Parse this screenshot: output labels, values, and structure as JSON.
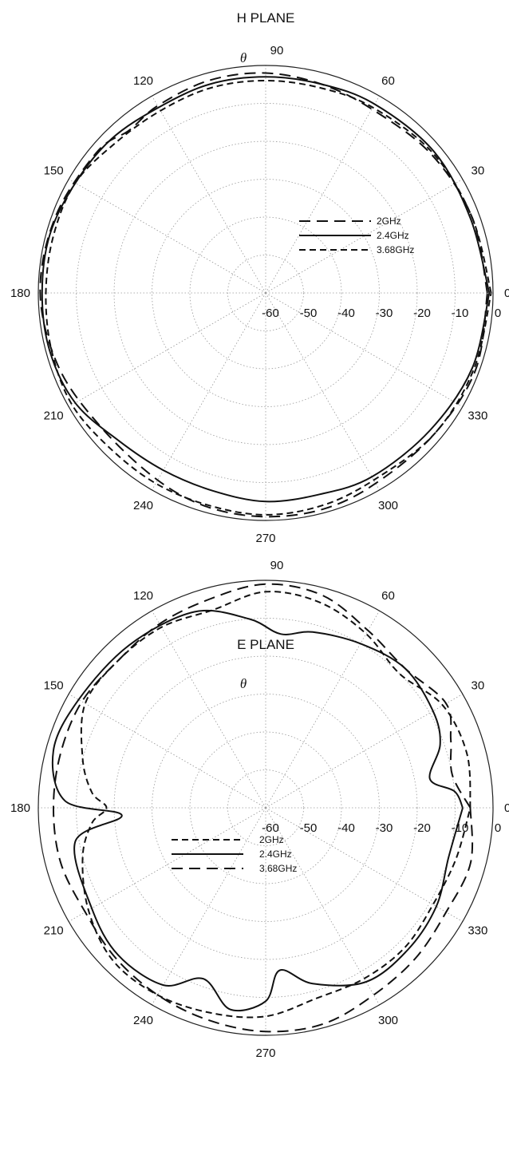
{
  "chart_data": [
    {
      "type": "polar-line",
      "title": "H PLANE",
      "theta_symbol": "θ",
      "angle_labels": [
        "0",
        "30",
        "60",
        "90",
        "120",
        "150",
        "180",
        "210",
        "240",
        "270",
        "300",
        "330"
      ],
      "radial_labels": [
        "-60",
        "-50",
        "-40",
        "-30",
        "-20",
        "-10",
        "0"
      ],
      "r_range": [
        -60,
        0
      ],
      "grid": true,
      "legend": "inside-right",
      "series": [
        {
          "name": "2GHz",
          "style": "dash-long",
          "points": [
            [
              0,
              -1.5
            ],
            [
              20,
              -2
            ],
            [
              40,
              -3
            ],
            [
              60,
              -4
            ],
            [
              75,
              -3
            ],
            [
              90,
              -2
            ],
            [
              105,
              -2
            ],
            [
              120,
              -3
            ],
            [
              130,
              -4
            ],
            [
              140,
              -2
            ],
            [
              160,
              -1
            ],
            [
              180,
              -0.5
            ],
            [
              200,
              -2
            ],
            [
              220,
              -4
            ],
            [
              240,
              -3
            ],
            [
              255,
              -1.5
            ],
            [
              270,
              -1
            ],
            [
              285,
              -1
            ],
            [
              300,
              -2
            ],
            [
              320,
              -2
            ],
            [
              340,
              -1
            ],
            [
              360,
              -1.5
            ]
          ]
        },
        {
          "name": "2.4GHz",
          "style": "solid",
          "points": [
            [
              0,
              -1
            ],
            [
              20,
              -2.5
            ],
            [
              40,
              -2
            ],
            [
              60,
              -2.5
            ],
            [
              75,
              -3
            ],
            [
              90,
              -3
            ],
            [
              105,
              -3
            ],
            [
              120,
              -3.5
            ],
            [
              135,
              -2.5
            ],
            [
              150,
              -2
            ],
            [
              165,
              -1
            ],
            [
              180,
              -1
            ],
            [
              195,
              -1
            ],
            [
              210,
              -2
            ],
            [
              225,
              -5
            ],
            [
              240,
              -6
            ],
            [
              255,
              -6
            ],
            [
              270,
              -5
            ],
            [
              285,
              -5
            ],
            [
              300,
              -4
            ],
            [
              320,
              -3.5
            ],
            [
              340,
              -2
            ],
            [
              360,
              -1
            ]
          ]
        },
        {
          "name": "3.68GHz",
          "style": "dash-short",
          "points": [
            [
              0,
              -0.5
            ],
            [
              20,
              -2
            ],
            [
              40,
              -2.5
            ],
            [
              60,
              -3.5
            ],
            [
              75,
              -4
            ],
            [
              90,
              -4
            ],
            [
              105,
              -4
            ],
            [
              120,
              -4.5
            ],
            [
              135,
              -4
            ],
            [
              150,
              -2
            ],
            [
              165,
              -2
            ],
            [
              180,
              -2
            ],
            [
              195,
              -1.5
            ],
            [
              210,
              -1
            ],
            [
              225,
              -2
            ],
            [
              240,
              -2
            ],
            [
              255,
              -2
            ],
            [
              270,
              -1.5
            ],
            [
              285,
              -2
            ],
            [
              300,
              -3
            ],
            [
              320,
              -2
            ],
            [
              340,
              -1.5
            ],
            [
              360,
              -0.5
            ]
          ]
        }
      ]
    },
    {
      "type": "polar-line",
      "title": "E PLANE",
      "theta_symbol": "θ",
      "angle_labels": [
        "0",
        "30",
        "60",
        "90",
        "120",
        "150",
        "180",
        "210",
        "240",
        "270",
        "300",
        "330"
      ],
      "radial_labels": [
        "-60",
        "-50",
        "-40",
        "-30",
        "-20",
        "-10",
        "0"
      ],
      "r_range": [
        -60,
        0
      ],
      "grid": true,
      "legend": "inside-lower-left",
      "series": [
        {
          "name": "2GHz",
          "style": "dash-short",
          "points": [
            [
              0,
              -6
            ],
            [
              15,
              -5
            ],
            [
              30,
              -6
            ],
            [
              45,
              -10
            ],
            [
              60,
              -7
            ],
            [
              75,
              -4
            ],
            [
              90,
              -3
            ],
            [
              105,
              -6
            ],
            [
              120,
              -5
            ],
            [
              135,
              -5
            ],
            [
              150,
              -5
            ],
            [
              165,
              -10
            ],
            [
              175,
              -14
            ],
            [
              180,
              -18
            ],
            [
              185,
              -14
            ],
            [
              195,
              -10
            ],
            [
              210,
              -6
            ],
            [
              225,
              -3
            ],
            [
              240,
              -3
            ],
            [
              255,
              -4
            ],
            [
              270,
              -5
            ],
            [
              285,
              -8
            ],
            [
              300,
              -8
            ],
            [
              315,
              -8
            ],
            [
              330,
              -9
            ],
            [
              345,
              -8
            ],
            [
              360,
              -6
            ]
          ]
        },
        {
          "name": "2.4GHz",
          "style": "solid",
          "points": [
            [
              0,
              -8
            ],
            [
              5,
              -10
            ],
            [
              10,
              -16
            ],
            [
              20,
              -11
            ],
            [
              30,
              -9
            ],
            [
              45,
              -8
            ],
            [
              60,
              -10
            ],
            [
              75,
              -12
            ],
            [
              85,
              -14
            ],
            [
              95,
              -10
            ],
            [
              110,
              -5
            ],
            [
              130,
              -4
            ],
            [
              150,
              -3
            ],
            [
              165,
              -2
            ],
            [
              178,
              -7
            ],
            [
              183,
              -22
            ],
            [
              190,
              -9
            ],
            [
              210,
              -7
            ],
            [
              225,
              -5
            ],
            [
              240,
              -6
            ],
            [
              250,
              -12
            ],
            [
              260,
              -6
            ],
            [
              270,
              -9
            ],
            [
              275,
              -17
            ],
            [
              285,
              -12
            ],
            [
              300,
              -7
            ],
            [
              315,
              -7
            ],
            [
              330,
              -8
            ],
            [
              345,
              -10
            ],
            [
              360,
              -8
            ]
          ]
        },
        {
          "name": "3.68GHz",
          "style": "dash-long",
          "points": [
            [
              0,
              -6
            ],
            [
              10,
              -10
            ],
            [
              20,
              -8
            ],
            [
              30,
              -5
            ],
            [
              45,
              -8
            ],
            [
              60,
              -6
            ],
            [
              75,
              -2
            ],
            [
              90,
              -1
            ],
            [
              105,
              -3
            ],
            [
              120,
              -4
            ],
            [
              135,
              -5
            ],
            [
              150,
              -4
            ],
            [
              165,
              -4
            ],
            [
              180,
              -4
            ],
            [
              195,
              -4
            ],
            [
              210,
              -5
            ],
            [
              225,
              -4
            ],
            [
              240,
              -3
            ],
            [
              255,
              -2
            ],
            [
              270,
              -1
            ],
            [
              285,
              -1
            ],
            [
              300,
              -3
            ],
            [
              315,
              -4
            ],
            [
              330,
              -5
            ],
            [
              345,
              -4
            ],
            [
              360,
              -6
            ]
          ]
        }
      ]
    }
  ]
}
